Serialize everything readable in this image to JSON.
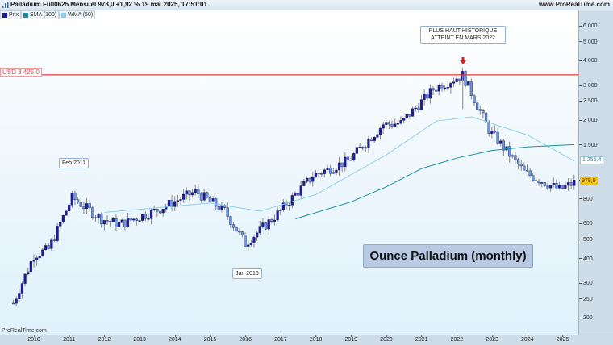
{
  "header": {
    "title": "Palladium Full0625 Mensuel 978,0 +1,92 % 19 mai 2025, 17:51:01",
    "site": "www.ProRealTime.com"
  },
  "legend": [
    {
      "label": "Prix",
      "color": "#1c1c9c"
    },
    {
      "label": "SMA (100)",
      "color": "#1b8fa6"
    },
    {
      "label": "WMA (50)",
      "color": "#8fd0ec"
    }
  ],
  "annotations": {
    "ath": "PLUS HAUT HISTORIQUE\nATTEINT EN MARS 2022",
    "ath_line1": "PLUS HAUT HISTORIQUE",
    "ath_line2": "ATTEINT EN MARS 2022",
    "feb2011": "Feb 2011",
    "jan2016": "Jan 2016",
    "usd_level": "USD 3 425,0",
    "big_title": "Ounce Palladium (monthly)",
    "watermark": "ProRealTime.com"
  },
  "price_tags": {
    "last": "978,0",
    "ma": "1 255,4"
  },
  "colors": {
    "bull_body": "#1c1c9c",
    "bear_body": "#6b9ae0",
    "wick": "#555555",
    "resistance": "#e23b3b",
    "sma": "#1b8fa6",
    "wma": "#8fd0ec"
  },
  "chart_data": {
    "type": "candlestick",
    "title": "Palladium Full0625 Mensuel",
    "subtitle": "Ounce Palladium (monthly)",
    "xlabel": "",
    "ylabel": "USD",
    "y_scale": "log",
    "ylim": [
      170,
      7000
    ],
    "y_ticks": [
      200,
      250,
      300,
      400,
      500,
      600,
      800,
      1000,
      1500,
      2000,
      2500,
      3000,
      4000,
      5000,
      6000
    ],
    "y_tick_labels": [
      "200",
      "250",
      "300",
      "400",
      "500",
      "600",
      "800",
      "1 000",
      "1 500",
      "2 000",
      "2 500",
      "3 000",
      "4 000",
      "5 000",
      "6 000"
    ],
    "x_ticks": [
      "2010",
      "2011",
      "2012",
      "2013",
      "2014",
      "2015",
      "2016",
      "2017",
      "2018",
      "2019",
      "2020",
      "2021",
      "2022",
      "2023",
      "2024",
      "2025"
    ],
    "horizontal_lines": [
      {
        "label": "USD 3 425,0",
        "value": 3425,
        "color": "#e23b3b"
      }
    ],
    "last_price": 978.0,
    "change_pct": 1.92,
    "date": "19 mai 2025, 17:51:01",
    "legend_position": "top-left",
    "grid": false,
    "series": [
      {
        "name": "Prix (yearly approx close)",
        "x": [
          "2009-06",
          "2010-01",
          "2010-06",
          "2011-02",
          "2011-12",
          "2012-06",
          "2013-06",
          "2014-08",
          "2015-06",
          "2016-01",
          "2016-12",
          "2017-12",
          "2018-12",
          "2019-12",
          "2020-06",
          "2021-05",
          "2022-03",
          "2022-12",
          "2023-12",
          "2024-12",
          "2025-05"
        ],
        "values": [
          240,
          420,
          450,
          820,
          640,
          600,
          700,
          880,
          700,
          480,
          680,
          1060,
          1260,
          1930,
          1950,
          2900,
          3425,
          1800,
          1100,
          900,
          978
        ]
      },
      {
        "name": "SMA (100)",
        "x": [
          "2017-06",
          "2019-01",
          "2020-01",
          "2021-01",
          "2022-01",
          "2023-01",
          "2024-01",
          "2025-05"
        ],
        "values": [
          640,
          780,
          930,
          1150,
          1300,
          1420,
          1480,
          1520
        ]
      },
      {
        "name": "WMA (50)",
        "x": [
          "2012-01",
          "2015-01",
          "2016-06",
          "2018-01",
          "2020-01",
          "2021-06",
          "2022-06",
          "2024-01",
          "2025-05"
        ],
        "values": [
          690,
          770,
          700,
          850,
          1350,
          2000,
          2100,
          1700,
          1255.4
        ]
      }
    ]
  }
}
